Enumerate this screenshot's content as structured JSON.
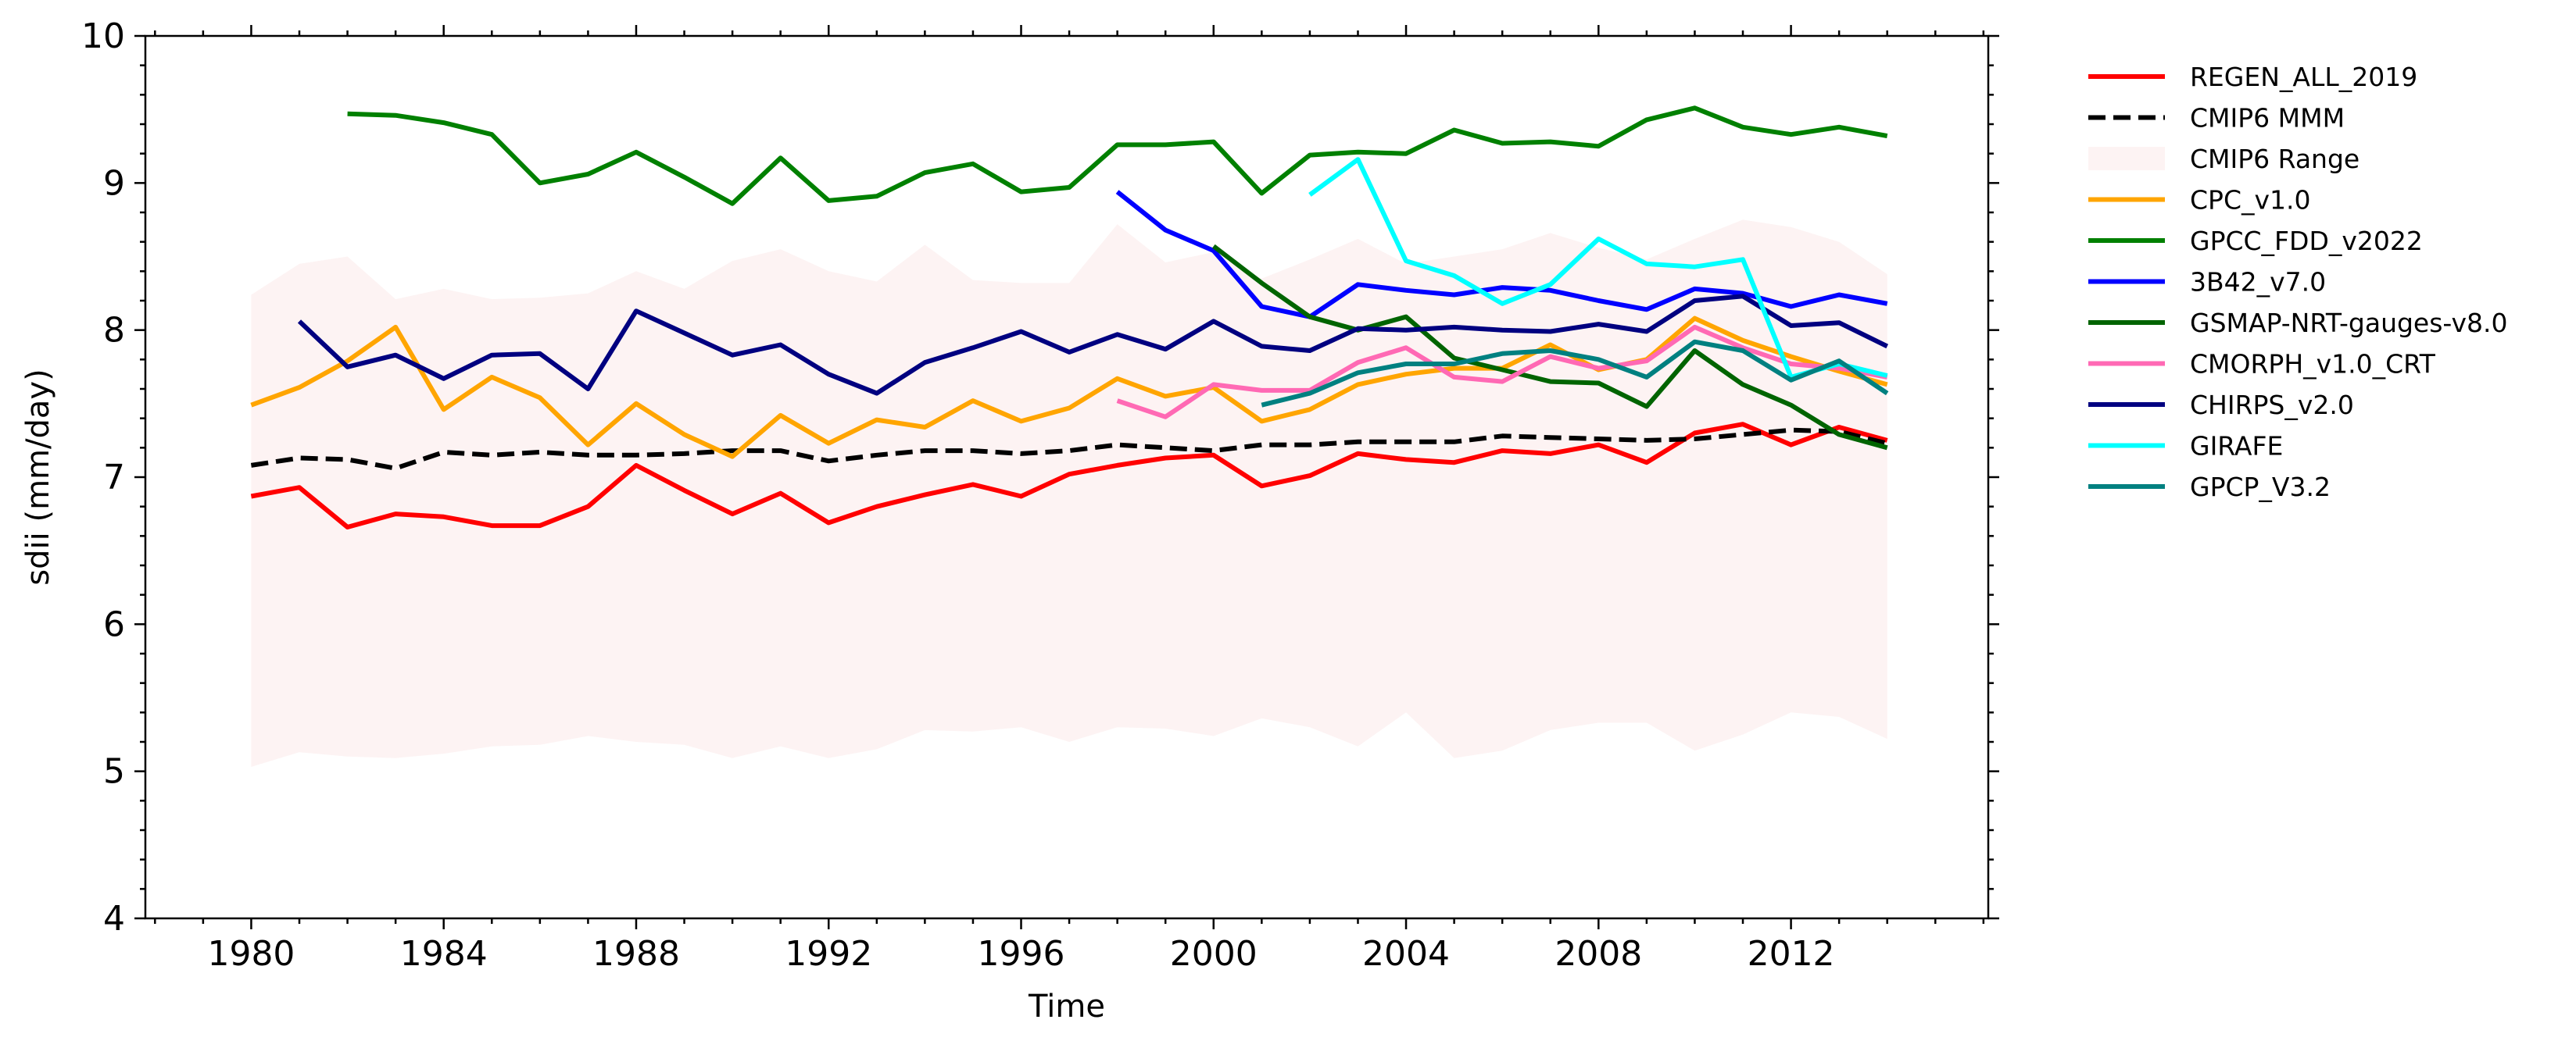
{
  "chart_data": {
    "type": "line",
    "title": "",
    "xlabel": "Time",
    "ylabel": "sdii (mm/day)",
    "xlim": [
      1977.8,
      2016.1
    ],
    "ylim": [
      4,
      10
    ],
    "x_ticks": [
      "1980",
      "1984",
      "1988",
      "1992",
      "1996",
      "2000",
      "2004",
      "2008",
      "2012"
    ],
    "y_ticks": [
      "4",
      "5",
      "6",
      "7",
      "8",
      "9",
      "10"
    ],
    "legend_position": "outside-right",
    "grid": false,
    "range": {
      "name": "CMIP6 Range",
      "color": "#fdf3f3",
      "x": [
        1980,
        1981,
        1982,
        1983,
        1984,
        1985,
        1986,
        1987,
        1988,
        1989,
        1990,
        1991,
        1992,
        1993,
        1994,
        1995,
        1996,
        1997,
        1998,
        1999,
        2000,
        2001,
        2002,
        2003,
        2004,
        2005,
        2006,
        2007,
        2008,
        2009,
        2010,
        2011,
        2012,
        2013,
        2014
      ],
      "lower": [
        5.03,
        5.13,
        5.1,
        5.09,
        5.12,
        5.17,
        5.18,
        5.24,
        5.2,
        5.18,
        5.09,
        5.17,
        5.09,
        5.15,
        5.28,
        5.27,
        5.3,
        5.2,
        5.3,
        5.29,
        5.24,
        5.36,
        5.3,
        5.17,
        5.4,
        5.09,
        5.14,
        5.28,
        5.33,
        5.33,
        5.14,
        5.25,
        5.4,
        5.37,
        5.22
      ],
      "upper": [
        8.24,
        8.45,
        8.5,
        8.21,
        8.28,
        8.21,
        8.22,
        8.25,
        8.4,
        8.28,
        8.47,
        8.55,
        8.4,
        8.33,
        8.58,
        8.34,
        8.32,
        8.32,
        8.72,
        8.46,
        8.53,
        8.35,
        8.48,
        8.62,
        8.45,
        8.5,
        8.55,
        8.66,
        8.56,
        8.48,
        8.62,
        8.75,
        8.7,
        8.6,
        8.38
      ]
    },
    "series": [
      {
        "name": "REGEN_ALL_2019",
        "color": "#ff0000",
        "dash": "solid",
        "x": [
          1980,
          1981,
          1982,
          1983,
          1984,
          1985,
          1986,
          1987,
          1988,
          1989,
          1990,
          1991,
          1992,
          1993,
          1994,
          1995,
          1996,
          1997,
          1998,
          1999,
          2000,
          2001,
          2002,
          2003,
          2004,
          2005,
          2006,
          2007,
          2008,
          2009,
          2010,
          2011,
          2012,
          2013,
          2014
        ],
        "values": [
          6.87,
          6.93,
          6.66,
          6.75,
          6.73,
          6.67,
          6.67,
          6.8,
          7.08,
          6.91,
          6.75,
          6.89,
          6.69,
          6.8,
          6.88,
          6.95,
          6.87,
          7.02,
          7.08,
          7.13,
          7.15,
          6.94,
          7.01,
          7.16,
          7.12,
          7.1,
          7.18,
          7.16,
          7.22,
          7.1,
          7.3,
          7.36,
          7.22,
          7.34,
          7.25
        ]
      },
      {
        "name": "CMIP6 MMM",
        "color": "#000000",
        "dash": "dashed",
        "x": [
          1980,
          1981,
          1982,
          1983,
          1984,
          1985,
          1986,
          1987,
          1988,
          1989,
          1990,
          1991,
          1992,
          1993,
          1994,
          1995,
          1996,
          1997,
          1998,
          1999,
          2000,
          2001,
          2002,
          2003,
          2004,
          2005,
          2006,
          2007,
          2008,
          2009,
          2010,
          2011,
          2012,
          2013,
          2014
        ],
        "values": [
          7.08,
          7.13,
          7.12,
          7.06,
          7.17,
          7.15,
          7.17,
          7.15,
          7.15,
          7.16,
          7.18,
          7.18,
          7.11,
          7.15,
          7.18,
          7.18,
          7.16,
          7.18,
          7.22,
          7.2,
          7.18,
          7.22,
          7.22,
          7.24,
          7.24,
          7.24,
          7.28,
          7.27,
          7.26,
          7.25,
          7.26,
          7.29,
          7.32,
          7.31,
          7.23
        ]
      },
      {
        "name": "CPC_v1.0",
        "color": "#ffa500",
        "dash": "solid",
        "x": [
          1980,
          1981,
          1982,
          1983,
          1984,
          1985,
          1986,
          1987,
          1988,
          1989,
          1990,
          1991,
          1992,
          1993,
          1994,
          1995,
          1996,
          1997,
          1998,
          1999,
          2000,
          2001,
          2002,
          2003,
          2004,
          2005,
          2006,
          2007,
          2008,
          2009,
          2010,
          2011,
          2012,
          2013,
          2014
        ],
        "values": [
          7.49,
          7.61,
          7.79,
          8.02,
          7.46,
          7.68,
          7.54,
          7.22,
          7.5,
          7.29,
          7.14,
          7.42,
          7.23,
          7.39,
          7.34,
          7.52,
          7.38,
          7.47,
          7.67,
          7.55,
          7.61,
          7.38,
          7.46,
          7.63,
          7.7,
          7.74,
          7.74,
          7.9,
          7.73,
          7.8,
          8.08,
          7.93,
          7.82,
          7.72,
          7.63
        ]
      },
      {
        "name": "GPCC_FDD_v2022",
        "color": "#008000",
        "dash": "solid",
        "x": [
          1982,
          1983,
          1984,
          1985,
          1986,
          1987,
          1988,
          1989,
          1990,
          1991,
          1992,
          1993,
          1994,
          1995,
          1996,
          1997,
          1998,
          1999,
          2000,
          2001,
          2002,
          2003,
          2004,
          2005,
          2006,
          2007,
          2008,
          2009,
          2010,
          2011,
          2012,
          2013,
          2014
        ],
        "values": [
          9.47,
          9.46,
          9.41,
          9.33,
          9.0,
          9.06,
          9.21,
          9.04,
          8.86,
          9.17,
          8.88,
          8.91,
          9.07,
          9.13,
          8.94,
          8.97,
          9.26,
          9.26,
          9.28,
          8.93,
          9.19,
          9.21,
          9.2,
          9.36,
          9.27,
          9.28,
          9.25,
          9.43,
          9.51,
          9.38,
          9.33,
          9.38,
          9.32
        ]
      },
      {
        "name": "3B42_v7.0",
        "color": "#0000ff",
        "dash": "solid",
        "x": [
          1998,
          1999,
          2000,
          2001,
          2002,
          2003,
          2004,
          2005,
          2006,
          2007,
          2008,
          2009,
          2010,
          2011,
          2012,
          2013,
          2014
        ],
        "values": [
          8.94,
          8.68,
          8.54,
          8.16,
          8.09,
          8.31,
          8.27,
          8.24,
          8.29,
          8.27,
          8.2,
          8.14,
          8.28,
          8.25,
          8.16,
          8.24,
          8.18
        ]
      },
      {
        "name": "GSMAP-NRT-gauges-v8.0",
        "color": "#006400",
        "dash": "solid",
        "x": [
          2000,
          2001,
          2002,
          2003,
          2004,
          2005,
          2006,
          2007,
          2008,
          2009,
          2010,
          2011,
          2012,
          2013,
          2014
        ],
        "values": [
          8.57,
          8.32,
          8.09,
          8.0,
          8.09,
          7.81,
          7.73,
          7.65,
          7.64,
          7.48,
          7.86,
          7.63,
          7.49,
          7.29,
          7.2
        ]
      },
      {
        "name": "CMORPH_v1.0_CRT",
        "color": "#ff69b4",
        "dash": "solid",
        "x": [
          1998,
          1999,
          2000,
          2001,
          2002,
          2003,
          2004,
          2005,
          2006,
          2007,
          2008,
          2009,
          2010,
          2011,
          2012,
          2013,
          2014
        ],
        "values": [
          7.52,
          7.41,
          7.63,
          7.59,
          7.59,
          7.78,
          7.88,
          7.68,
          7.65,
          7.82,
          7.74,
          7.79,
          8.02,
          7.88,
          7.77,
          7.74,
          7.68
        ]
      },
      {
        "name": "CHIRPS_v2.0",
        "color": "#000080",
        "dash": "solid",
        "x": [
          1981,
          1982,
          1983,
          1984,
          1985,
          1986,
          1987,
          1988,
          1989,
          1990,
          1991,
          1992,
          1993,
          1994,
          1995,
          1996,
          1997,
          1998,
          1999,
          2000,
          2001,
          2002,
          2003,
          2004,
          2005,
          2006,
          2007,
          2008,
          2009,
          2010,
          2011,
          2012,
          2013,
          2014
        ],
        "values": [
          8.06,
          7.75,
          7.83,
          7.67,
          7.83,
          7.84,
          7.6,
          8.13,
          7.98,
          7.83,
          7.9,
          7.7,
          7.57,
          7.78,
          7.88,
          7.99,
          7.85,
          7.97,
          7.87,
          8.06,
          7.89,
          7.86,
          8.01,
          8.0,
          8.02,
          8.0,
          7.99,
          8.04,
          7.99,
          8.2,
          8.23,
          8.03,
          8.05,
          7.89
        ]
      },
      {
        "name": "GIRAFE",
        "color": "#00ffff",
        "dash": "solid",
        "x": [
          2002,
          2003,
          2004,
          2005,
          2006,
          2007,
          2008,
          2009,
          2010,
          2011,
          2012,
          2013,
          2014
        ],
        "values": [
          8.92,
          9.16,
          8.47,
          8.37,
          8.18,
          8.31,
          8.62,
          8.45,
          8.43,
          8.48,
          7.68,
          7.77,
          7.69
        ]
      },
      {
        "name": "GPCP_V3.2",
        "color": "#008080",
        "dash": "solid",
        "x": [
          2001,
          2002,
          2003,
          2004,
          2005,
          2006,
          2007,
          2008,
          2009,
          2010,
          2011,
          2012,
          2013,
          2014
        ],
        "values": [
          7.49,
          7.57,
          7.71,
          7.77,
          7.77,
          7.84,
          7.86,
          7.8,
          7.68,
          7.92,
          7.86,
          7.66,
          7.79,
          7.57
        ]
      }
    ]
  }
}
